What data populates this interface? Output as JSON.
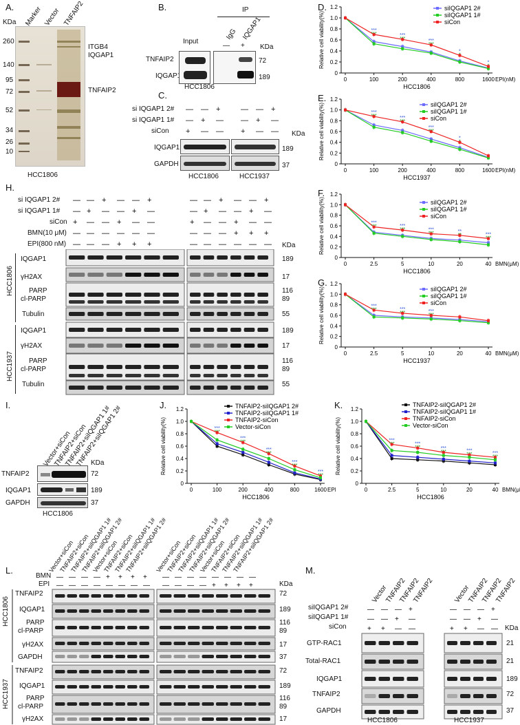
{
  "panel_labels": {
    "A": "A.",
    "B": "B.",
    "C": "C.",
    "D": "D.",
    "E": "E.",
    "F": "F.",
    "G": "G.",
    "H": "H.",
    "I": "I.",
    "J": "J.",
    "K": "K.",
    "L": "L.",
    "M": "M."
  },
  "common": {
    "kda": "KDa",
    "cell_hcc1806": "HCC1806",
    "cell_hcc1937": "HCC1937",
    "dash": "—",
    "plus": "+"
  },
  "panelA": {
    "marker": "Marker",
    "vector": "Vector",
    "tnfaip2": "TNFAIP2",
    "kda": "KDa",
    "sizes": [
      "260",
      "140",
      "95",
      "72",
      "52",
      "34",
      "26",
      "10"
    ],
    "bands": [
      "ITGB4",
      "IQGAP1",
      "TNFAIP2"
    ],
    "cell": "HCC1806"
  },
  "panelB": {
    "ip": "IP",
    "input": "Input",
    "igg": "IgG",
    "iqgap1": "IQGAP1",
    "minus": "—",
    "plus": "+",
    "kda": "KDa",
    "rows": [
      "TNFAIP2",
      "IQGAP1"
    ],
    "sizes": [
      "72",
      "189"
    ],
    "cell": "HCC1806"
  },
  "panelC": {
    "conds": [
      "si IQGAP1 2#",
      "si IQGAP1 1#",
      "siCon"
    ],
    "rows": [
      "IQGAP1",
      "GAPDH"
    ],
    "sizes": [
      "189",
      "37"
    ],
    "kda": "KDa"
  },
  "panelH": {
    "conds": [
      "si IQGAP1 2#",
      "si IQGAP1 1#",
      "siCon",
      "BMN(10 μM)",
      "EPI(800 nM)"
    ],
    "rows1806": [
      "IQGAP1",
      "γH2AX",
      "PARP",
      "cl-PARP",
      "Tubulin"
    ],
    "rows1937": [
      "IQGAP1",
      "γH2AX",
      "PARP",
      "cl-PARP",
      "Tubulin"
    ],
    "sizes": [
      "189",
      "17",
      "116",
      "89",
      "55"
    ],
    "kda": "KDa"
  },
  "panelI": {
    "lanes": [
      "Vector+siCon",
      "TNFAIP2+siCon",
      "TNFAIP2+siIQGAP1 1#",
      "TNFAIP2+siIQGAP1 2#"
    ],
    "rows": [
      "TNFAIP2",
      "IQGAP1",
      "GAPDH"
    ],
    "sizes": [
      "72",
      "189",
      "37"
    ],
    "kda": "KDa",
    "cell": "HCC1806"
  },
  "panelL": {
    "lanes": [
      "Vector+siCon",
      "TNFAIP2+siCon",
      "TNFAIP2+siIQGAP1 1#",
      "TNFAIP2+siIQGAP1 2#",
      "Vector+siCon",
      "TNFAIP2+siCon",
      "TNFAIP2+siIQGAP1 1#",
      "TNFAIP2+siIQGAP1 2#"
    ],
    "bmn": "BMN",
    "epi": "EPI",
    "rows": [
      "TNFAIP2",
      "IQGAP1",
      "PARP",
      "cl-PARP",
      "γH2AX",
      "GAPDH"
    ],
    "sizes": [
      "72",
      "189",
      "116",
      "89",
      "17",
      "37"
    ],
    "kda": "KDa"
  },
  "panelM": {
    "lanes": [
      "Vector",
      "TNFAIP2",
      "TNFAIP2",
      "TNFAIP2"
    ],
    "conds": [
      "siIQGAP1 2#",
      "siIQGAP1 1#",
      "siCon"
    ],
    "rows": [
      "GTP-RAC1",
      "Total-RAC1",
      "IQGAP1",
      "TNFAIP2",
      "GAPDH"
    ],
    "sizes": [
      "21",
      "21",
      "189",
      "72",
      "37"
    ],
    "kda": "KDa"
  },
  "chart_data": [
    {
      "panel": "D",
      "type": "line",
      "xlabel": "EPI(nM)",
      "ylabel": "Relative cell viability(%)",
      "categories": [
        "0",
        "100",
        "200",
        "400",
        "800",
        "1600"
      ],
      "ylim": [
        0,
        1.2
      ],
      "yticks": [
        "0",
        "0.2",
        "0.4",
        "0.6",
        "0.8",
        "1.0",
        "1.2"
      ],
      "cell": "HCC1806",
      "series": [
        {
          "name": "siIQGAP1 2#",
          "color": "#6b6bff",
          "values": [
            1.0,
            0.57,
            0.48,
            0.38,
            0.22,
            0.09
          ]
        },
        {
          "name": "siIQGAP1 1#",
          "color": "#22cc22",
          "values": [
            1.0,
            0.53,
            0.44,
            0.36,
            0.2,
            0.08
          ]
        },
        {
          "name": "siCon",
          "color": "#ee2222",
          "values": [
            1.0,
            0.7,
            0.61,
            0.51,
            0.32,
            0.12
          ]
        }
      ],
      "annotations": [
        "***",
        "***",
        "***",
        "*",
        "*"
      ]
    },
    {
      "panel": "E",
      "type": "line",
      "xlabel": "EPI(nM)",
      "ylabel": "Relative cell viability(%)",
      "categories": [
        "0",
        "100",
        "200",
        "400",
        "800",
        "1600"
      ],
      "ylim": [
        0,
        1.2
      ],
      "yticks": [
        "0",
        "0.2",
        "0.4",
        "0.6",
        "0.8",
        "1.0",
        "1.2"
      ],
      "cell": "HCC1937",
      "series": [
        {
          "name": "siIQGAP1 2#",
          "color": "#6b6bff",
          "values": [
            1.0,
            0.72,
            0.62,
            0.46,
            0.3,
            0.12
          ]
        },
        {
          "name": "siIQGAP1 1#",
          "color": "#22cc22",
          "values": [
            1.0,
            0.68,
            0.58,
            0.42,
            0.27,
            0.11
          ]
        },
        {
          "name": "siCon",
          "color": "#ee2222",
          "values": [
            1.0,
            0.88,
            0.78,
            0.6,
            0.4,
            0.15
          ]
        }
      ],
      "annotations": [
        "***",
        "***",
        "***",
        "*"
      ]
    },
    {
      "panel": "F",
      "type": "line",
      "xlabel": "BMN(μM)",
      "ylabel": "Relative cell viability(%)",
      "categories": [
        "0",
        "2.5",
        "5",
        "10",
        "20",
        "40"
      ],
      "ylim": [
        0,
        1.2
      ],
      "yticks": [
        "0",
        "0.2",
        "0.4",
        "0.6",
        "0.8",
        "1.0",
        "1.2"
      ],
      "cell": "HCC1806",
      "series": [
        {
          "name": "siIQGAP1 2#",
          "color": "#6b6bff",
          "values": [
            1.0,
            0.48,
            0.42,
            0.36,
            0.33,
            0.28
          ]
        },
        {
          "name": "siIQGAP1 1#",
          "color": "#22cc22",
          "values": [
            1.0,
            0.46,
            0.4,
            0.34,
            0.3,
            0.24
          ]
        },
        {
          "name": "siCon",
          "color": "#ee2222",
          "values": [
            1.0,
            0.58,
            0.52,
            0.45,
            0.42,
            0.36
          ]
        }
      ],
      "annotations": [
        "***",
        "***",
        "***",
        "**",
        "***"
      ]
    },
    {
      "panel": "G",
      "type": "line",
      "xlabel": "BMN(μM)",
      "ylabel": "Relative cell viability(%)",
      "categories": [
        "0",
        "2.5",
        "5",
        "10",
        "20",
        "40"
      ],
      "ylim": [
        0,
        1.2
      ],
      "yticks": [
        "0",
        "0.2",
        "0.4",
        "0.6",
        "0.8",
        "1.0",
        "1.2"
      ],
      "cell": "HCC1937",
      "series": [
        {
          "name": "siIQGAP1 2#",
          "color": "#6b6bff",
          "values": [
            1.0,
            0.6,
            0.57,
            0.55,
            0.52,
            0.48
          ]
        },
        {
          "name": "siIQGAP1 1#",
          "color": "#22cc22",
          "values": [
            1.0,
            0.57,
            0.55,
            0.53,
            0.5,
            0.46
          ]
        },
        {
          "name": "siCon",
          "color": "#ee2222",
          "values": [
            1.0,
            0.7,
            0.64,
            0.6,
            0.57,
            0.5
          ]
        }
      ],
      "annotations": [
        "***",
        "***",
        "***"
      ]
    },
    {
      "panel": "J",
      "type": "line",
      "xlabel": "EPI(nM)",
      "ylabel": "Relative cell viability(%)",
      "categories": [
        "0",
        "100",
        "200",
        "400",
        "800",
        "1600"
      ],
      "ylim": [
        0,
        1.2
      ],
      "yticks": [
        "0",
        "0.2",
        "0.4",
        "0.6",
        "0.8",
        "1.0",
        "1.2"
      ],
      "cell": "HCC1806",
      "series": [
        {
          "name": "TNFAIP2-siIQGAP1 2#",
          "color": "#111111",
          "values": [
            1.0,
            0.6,
            0.46,
            0.3,
            0.15,
            0.06
          ]
        },
        {
          "name": "TNFAIP2-siIQGAP1 1#",
          "color": "#2222cc",
          "values": [
            1.0,
            0.64,
            0.5,
            0.34,
            0.17,
            0.07
          ]
        },
        {
          "name": "TNFAIP2-siCon",
          "color": "#ee2222",
          "values": [
            1.0,
            0.82,
            0.66,
            0.48,
            0.28,
            0.12
          ]
        },
        {
          "name": "Vector-siCon",
          "color": "#22cc22",
          "values": [
            1.0,
            0.7,
            0.55,
            0.4,
            0.22,
            0.09
          ]
        }
      ],
      "annotations": [
        "***",
        "***",
        "***",
        "***",
        "***"
      ]
    },
    {
      "panel": "K",
      "type": "line",
      "xlabel": "BMN(μM)",
      "ylabel": "Relative cell viability(%)",
      "categories": [
        "0",
        "2.5",
        "5",
        "10",
        "20",
        "40"
      ],
      "ylim": [
        0,
        1.2
      ],
      "yticks": [
        "0",
        "0.2",
        "0.4",
        "0.6",
        "0.8",
        "1.0",
        "1.2"
      ],
      "cell": "HCC1806",
      "series": [
        {
          "name": "TNFAIP2-siIQGAP1 2#",
          "color": "#111111",
          "values": [
            1.0,
            0.4,
            0.38,
            0.36,
            0.33,
            0.3
          ]
        },
        {
          "name": "TNFAIP2-siIQGAP1 1#",
          "color": "#2222cc",
          "values": [
            1.0,
            0.45,
            0.42,
            0.39,
            0.36,
            0.33
          ]
        },
        {
          "name": "TNFAIP2-siCon",
          "color": "#ee2222",
          "values": [
            1.0,
            0.63,
            0.57,
            0.5,
            0.46,
            0.42
          ]
        },
        {
          "name": "Vector-siCon",
          "color": "#22cc22",
          "values": [
            1.0,
            0.53,
            0.5,
            0.45,
            0.42,
            0.38
          ]
        }
      ],
      "annotations": [
        "***",
        "***",
        "***",
        "***",
        "***"
      ]
    }
  ]
}
